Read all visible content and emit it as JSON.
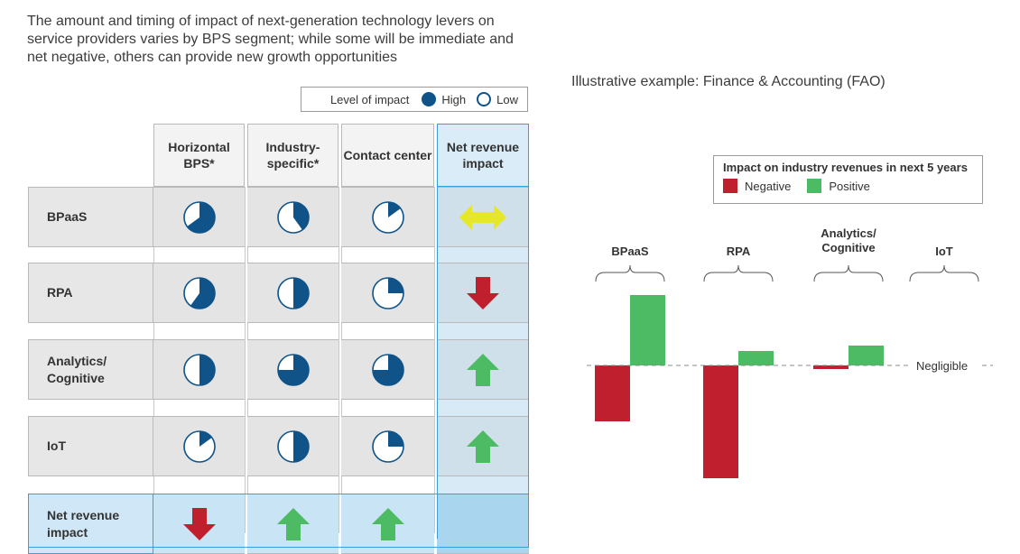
{
  "headline": "The amount and timing of impact of next-generation technology levers on service providers varies by BPS segment; while some will be immediate and net negative, others can provide new growth opportunities",
  "impact_legend": {
    "label": "Level of impact",
    "high": "High",
    "low": "Low"
  },
  "columns": [
    "Horizontal BPS*",
    "Industry-specific*",
    "Contact center",
    "Net revenue impact"
  ],
  "rows": [
    {
      "label": "BPaaS",
      "levels": [
        0.65,
        0.4,
        0.15
      ],
      "net": "neutral"
    },
    {
      "label": "RPA",
      "levels": [
        0.6,
        0.5,
        0.25
      ],
      "net": "down"
    },
    {
      "label": "Analytics/ Cognitive",
      "levels": [
        0.5,
        0.75,
        0.75
      ],
      "net": "up"
    },
    {
      "label": "IoT",
      "levels": [
        0.15,
        0.5,
        0.25
      ],
      "net": "up"
    },
    {
      "label": "Net revenue impact",
      "net_arrows": [
        "down",
        "up",
        "up"
      ]
    }
  ],
  "illustrative_title": "Illustrative example: Finance & Accounting (FAO)",
  "colors": {
    "high": "#0f5389",
    "negative": "#c0202e",
    "positive": "#4cbb64",
    "neutral_arrow": "#e6e62a",
    "net_blue": "#3a9fd8"
  },
  "chart_data": {
    "type": "bar",
    "title": "Impact on industry revenues in next 5 years",
    "categories": [
      "BPaaS",
      "RPA",
      "Analytics/ Cognitive",
      "IoT"
    ],
    "series": [
      {
        "name": "Negative",
        "values": [
          -6.2,
          -12.5,
          -0.4,
          0
        ]
      },
      {
        "name": "Positive",
        "values": [
          7.8,
          1.6,
          2.2,
          0
        ]
      }
    ],
    "baseline_label": "Negligible",
    "legend_title": "Impact on industry revenues in next 5 years"
  }
}
